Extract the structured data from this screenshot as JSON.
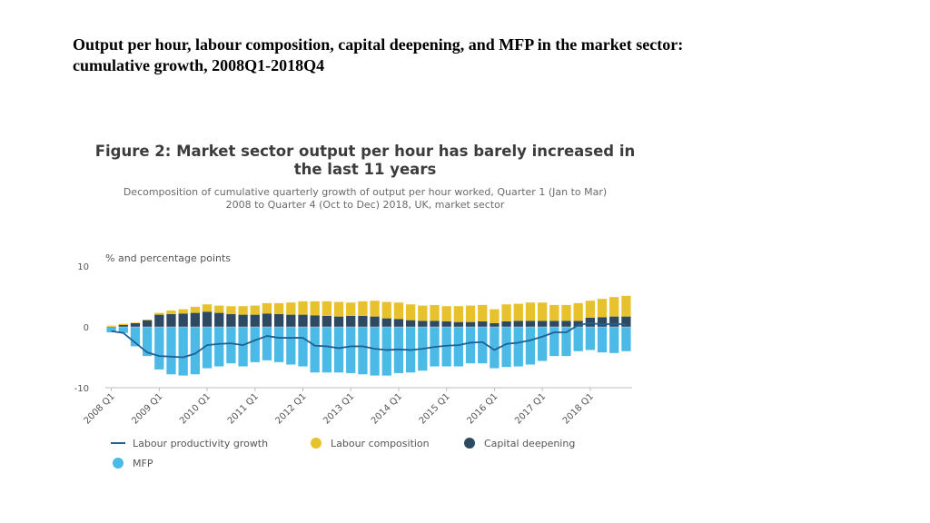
{
  "slide": {
    "title_line1": "Output per hour, labour composition, capital deepening, and MFP in the market sector:",
    "title_line2": "cumulative growth, 2008Q1-2018Q4"
  },
  "figure": {
    "title_line1": "Figure 2: Market sector output per hour has barely increased in",
    "title_line2": "the last 11 years",
    "subtitle_line1": "Decomposition of cumulative quarterly growth of output per hour worked, Quarter 1 (Jan to Mar)",
    "subtitle_line2": "2008 to Quarter 4 (Oct to Dec) 2018, UK, market sector"
  },
  "colors": {
    "line": "#206095",
    "labour": "#e8c22c",
    "capital": "#2e4a62",
    "mfp": "#4cbae6",
    "axis": "#bebebe",
    "text": "#555555"
  },
  "chart_data": {
    "type": "bar",
    "stacked": true,
    "ylabel": "% and percentage points",
    "ylim": [
      -10,
      10
    ],
    "yticks": [
      10,
      0,
      -10
    ],
    "x_tick_labels": [
      "2008 Q1",
      "2009 Q1",
      "2010 Q1",
      "2011 Q1",
      "2012 Q1",
      "2013 Q1",
      "2014 Q1",
      "2015 Q1",
      "2016 Q1",
      "2017 Q1",
      "2018 Q1"
    ],
    "x_tick_every": 4,
    "categories": [
      "2008 Q1",
      "2008 Q2",
      "2008 Q3",
      "2008 Q4",
      "2009 Q1",
      "2009 Q2",
      "2009 Q3",
      "2009 Q4",
      "2010 Q1",
      "2010 Q2",
      "2010 Q3",
      "2010 Q4",
      "2011 Q1",
      "2011 Q2",
      "2011 Q3",
      "2011 Q4",
      "2012 Q1",
      "2012 Q2",
      "2012 Q3",
      "2012 Q4",
      "2013 Q1",
      "2013 Q2",
      "2013 Q3",
      "2013 Q4",
      "2014 Q1",
      "2014 Q2",
      "2014 Q3",
      "2014 Q4",
      "2015 Q1",
      "2015 Q2",
      "2015 Q3",
      "2015 Q4",
      "2016 Q1",
      "2016 Q2",
      "2016 Q3",
      "2016 Q4",
      "2017 Q1",
      "2017 Q2",
      "2017 Q3",
      "2017 Q4",
      "2018 Q1",
      "2018 Q2",
      "2018 Q3",
      "2018 Q4"
    ],
    "series": [
      {
        "name": "Capital deepening",
        "kind": "bar",
        "color_key": "capital",
        "values": [
          -0.1,
          0.3,
          0.6,
          1.1,
          2.0,
          2.1,
          2.2,
          2.3,
          2.5,
          2.3,
          2.1,
          2.0,
          2.0,
          2.2,
          2.1,
          2.0,
          2.0,
          1.9,
          1.8,
          1.7,
          1.8,
          1.8,
          1.7,
          1.4,
          1.3,
          1.1,
          1.0,
          1.0,
          0.9,
          0.8,
          0.8,
          0.9,
          0.6,
          0.9,
          1.0,
          1.0,
          1.0,
          1.0,
          1.0,
          1.0,
          1.5,
          1.6,
          1.7,
          1.7
        ]
      },
      {
        "name": "Labour composition",
        "kind": "bar",
        "color_key": "labour",
        "values": [
          0.2,
          0.2,
          0.1,
          0.1,
          0.3,
          0.6,
          0.7,
          1.0,
          1.2,
          1.2,
          1.3,
          1.4,
          1.5,
          1.7,
          1.8,
          2.0,
          2.2,
          2.3,
          2.4,
          2.4,
          2.2,
          2.4,
          2.6,
          2.7,
          2.7,
          2.6,
          2.5,
          2.6,
          2.5,
          2.6,
          2.7,
          2.7,
          2.3,
          2.8,
          2.8,
          3.0,
          3.0,
          2.6,
          2.6,
          2.9,
          2.8,
          3.0,
          3.2,
          3.4
        ]
      },
      {
        "name": "MFP",
        "kind": "bar",
        "color_key": "mfp",
        "values": [
          -0.8,
          -1.0,
          -3.2,
          -4.8,
          -7.0,
          -7.8,
          -8.0,
          -7.8,
          -6.8,
          -6.5,
          -6.0,
          -6.5,
          -5.8,
          -5.5,
          -5.8,
          -6.2,
          -6.5,
          -7.5,
          -7.5,
          -7.5,
          -7.6,
          -7.8,
          -8.0,
          -8.0,
          -7.6,
          -7.5,
          -7.2,
          -6.5,
          -6.5,
          -6.5,
          -6.0,
          -6.0,
          -6.8,
          -6.6,
          -6.5,
          -6.2,
          -5.6,
          -4.8,
          -4.8,
          -4.0,
          -3.8,
          -4.2,
          -4.3,
          -4.0
        ]
      },
      {
        "name": "Labour productivity growth",
        "kind": "line",
        "color_key": "line",
        "values": [
          -0.7,
          -1.0,
          -2.6,
          -4.2,
          -4.8,
          -4.9,
          -5.0,
          -4.4,
          -3.0,
          -2.8,
          -2.7,
          -3.0,
          -2.2,
          -1.5,
          -1.8,
          -1.8,
          -1.8,
          -3.1,
          -3.2,
          -3.5,
          -3.2,
          -3.2,
          -3.6,
          -3.8,
          -3.7,
          -3.8,
          -3.6,
          -3.3,
          -3.1,
          -3.0,
          -2.6,
          -2.5,
          -3.8,
          -2.8,
          -2.6,
          -2.2,
          -1.6,
          -0.9,
          -0.9,
          0.3,
          0.6,
          0.4,
          0.5,
          0.4
        ]
      }
    ],
    "legend": [
      {
        "label": "Labour productivity growth",
        "shape": "line",
        "color_key": "line"
      },
      {
        "label": "Labour composition",
        "shape": "circle",
        "color_key": "labour"
      },
      {
        "label": "Capital deepening",
        "shape": "circle",
        "color_key": "capital"
      },
      {
        "label": "MFP",
        "shape": "circle",
        "color_key": "mfp"
      }
    ]
  }
}
